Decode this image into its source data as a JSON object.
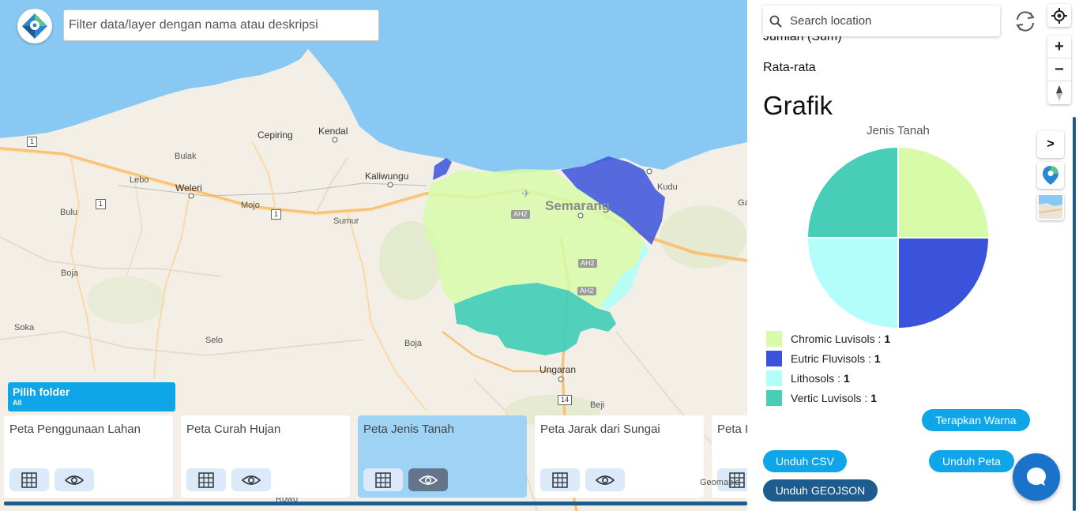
{
  "map": {
    "filter_placeholder": "Filter data/layer dengan nama atau deskripsi",
    "places": [
      {
        "name": "Kendal"
      },
      {
        "name": "Cepiring"
      },
      {
        "name": "Bulak"
      },
      {
        "name": "Kaliwungu"
      },
      {
        "name": "Lebo"
      },
      {
        "name": "Weleri"
      },
      {
        "name": "Mojo"
      },
      {
        "name": "Bulu"
      },
      {
        "name": "Sumur"
      },
      {
        "name": "Semarang"
      },
      {
        "name": "Kudu"
      },
      {
        "name": "Boja"
      },
      {
        "name": "Soka"
      },
      {
        "name": "Selo"
      },
      {
        "name": "Boja"
      },
      {
        "name": "Ungaran"
      },
      {
        "name": "Beji"
      },
      {
        "name": "Ga"
      },
      {
        "name": "Rowo"
      }
    ],
    "route_shields": [
      "1",
      "1",
      "1",
      "14"
    ],
    "ah_shields": [
      "AH2",
      "AH2",
      "AH2"
    ],
    "attribution": "Geomapid",
    "soil_colors": {
      "chromic_luvisols": "#d7fba9",
      "eutric_fluvisols": "#3b52db",
      "lithosols": "#b3fdfa",
      "vertic_luvisols": "#48cdb8"
    }
  },
  "folder": {
    "label": "Pilih folder",
    "sub": "All"
  },
  "layers": [
    {
      "title": "Peta Penggunaan Lahan",
      "active": false
    },
    {
      "title": "Peta Curah Hujan",
      "active": false
    },
    {
      "title": "Peta Jenis Tanah",
      "active": true
    },
    {
      "title": "Peta Jarak dari Sungai",
      "active": false
    },
    {
      "title": "Peta I",
      "active": false
    }
  ],
  "panel": {
    "search_placeholder": "Search location",
    "zoom_in": "+",
    "zoom_out": "−",
    "sum_label": "Jumlah (Sum)",
    "avg_label": "Rata-rata",
    "grafik_title": "Grafik",
    "toggle_label": ">",
    "buttons": {
      "apply_color": "Terapkan Warna",
      "download_csv": "Unduh CSV",
      "download_map": "Unduh Peta",
      "download_geojson": "Unduh GEOJSON"
    }
  },
  "chart_data": {
    "type": "pie",
    "title": "Jenis Tanah",
    "categories": [
      "Chromic Luvisols",
      "Eutric Fluvisols",
      "Lithosols",
      "Vertic Luvisols"
    ],
    "values": [
      1,
      1,
      1,
      1
    ],
    "colors": [
      "#d7fba9",
      "#3b52db",
      "#b3fdfa",
      "#48cdb8"
    ],
    "legend_position": "bottom"
  }
}
